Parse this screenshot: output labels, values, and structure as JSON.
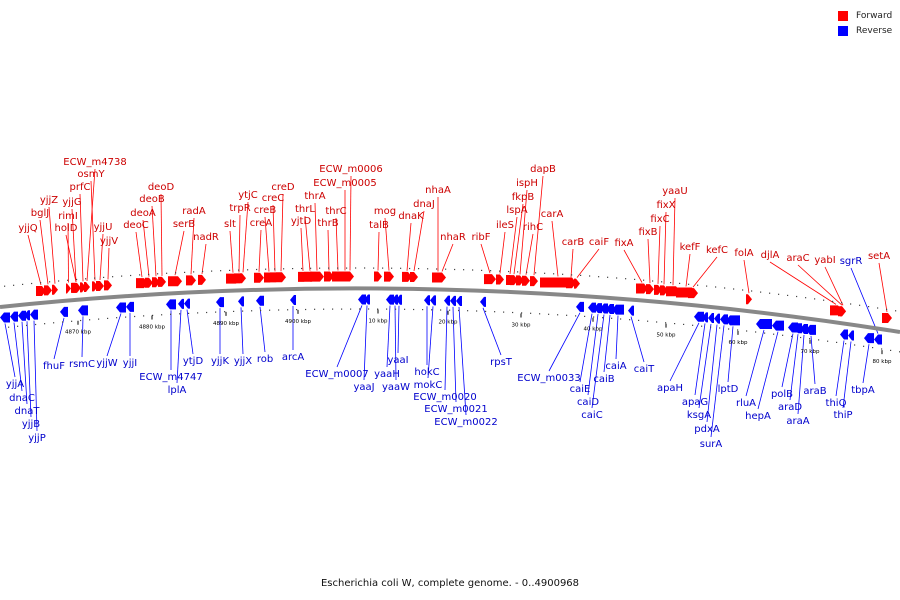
{
  "legend": {
    "forward_label": "Forward",
    "reverse_label": "Reverse",
    "forward_color": "#ff0000",
    "reverse_color": "#0000ff"
  },
  "caption": "Escherichia coli W, complete genome. - 0..4900968",
  "axis_labels": [
    "4870 kbp",
    "4880 kbp",
    "4890 kbp",
    "4900 kbp",
    "10 kbp",
    "20 kbp",
    "30 kbp",
    "40 kbp",
    "50 kbp",
    "60 kbp",
    "70 kbp",
    "80 kbp"
  ],
  "forward_genes": [
    "yjjQ",
    "bglJ",
    "yjjZ",
    "rimI",
    "yjjG",
    "holD",
    "prfC",
    "ECW_m4738",
    "osmY",
    "yjjU",
    "yjjV",
    "deoC",
    "deoA",
    "deoB",
    "deoD",
    "serB",
    "radA",
    "nadR",
    "slt",
    "trpR",
    "ytjC",
    "creA",
    "creB",
    "creC",
    "creD",
    "yjtD",
    "thrL",
    "thrA",
    "thrB",
    "thrC",
    "ECW_m0005",
    "ECW_m0006",
    "talB",
    "mog",
    "dnaK",
    "dnaJ",
    "nhaA",
    "nhaR",
    "ribF",
    "ileS",
    "lspA",
    "fkpB",
    "ispH",
    "rihC",
    "dapB",
    "carA",
    "carB",
    "caiF",
    "fixA",
    "fixB",
    "fixC",
    "fixX",
    "yaaU",
    "kefF",
    "kefC",
    "folA",
    "djlA",
    "araC",
    "yabI",
    "setA"
  ],
  "reverse_genes": [
    "yjjA",
    "dnaC",
    "dnaT",
    "yjjB",
    "yjjP",
    "fhuF",
    "rsmC",
    "yjjW",
    "yjjI",
    "ECW_m4747",
    "lplA",
    "ytjD",
    "yjjK",
    "yjjX",
    "rob",
    "arcA",
    "ECW_m0007",
    "yaaJ",
    "yaaH",
    "yaaW",
    "yaaI",
    "hokC",
    "mokC",
    "ECW_m0020",
    "ECW_m0021",
    "ECW_m0022",
    "rpsT",
    "ECW_m0033",
    "caiE",
    "caiD",
    "caiC",
    "caiB",
    "caiA",
    "caiT",
    "apaH",
    "apaG",
    "ksgA",
    "pdxA",
    "surA",
    "lptD",
    "rluA",
    "hepA",
    "polB",
    "araD",
    "araA",
    "araB",
    "thiQ",
    "thiP",
    "tbpA",
    "sgrR"
  ]
}
